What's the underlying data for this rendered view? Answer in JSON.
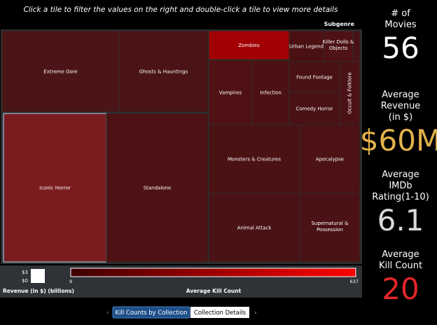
{
  "header": {
    "instruction": "Click a tile to filter the values on the right and double-click a tile to view more details",
    "treemap_label": "Subgenre"
  },
  "tiles": [
    {
      "label": "Extreme Gore",
      "color": "#4b1416"
    },
    {
      "label": "Ghosts & Hauntings",
      "color": "#4a1315"
    },
    {
      "label": "Iconic Horror",
      "color": "#7a1c1f"
    },
    {
      "label": "Standalone",
      "color": "#4d1214"
    },
    {
      "label": "Zombies",
      "color": "#a30004"
    },
    {
      "label": "Urban Legend",
      "color": "#4a1012"
    },
    {
      "label": "Killer Dolls & Objects",
      "color": "#4e1214"
    },
    {
      "label": "Vampires",
      "color": "#4f1113"
    },
    {
      "label": "Infection",
      "color": "#4c1113"
    },
    {
      "label": "Found Footage",
      "color": "#4a1113"
    },
    {
      "label": "Comedy Horror",
      "color": "#4a1214"
    },
    {
      "label": "Occult & Folklore",
      "color": "#4a1214"
    },
    {
      "label": "Monsters & Creatures",
      "color": "#4b1214"
    },
    {
      "label": "Apocalypse",
      "color": "#4d1214"
    },
    {
      "label": "Animal Attack",
      "color": "#4a1214"
    },
    {
      "label": "Supernatural & Possession",
      "color": "#4a1214"
    }
  ],
  "legend": {
    "revenue_max": "$3",
    "revenue_min": "$0",
    "revenue_title": "Revenue (in $) (billions)",
    "kill_min": "9",
    "kill_max": "637",
    "kill_title": "Average Kill Count",
    "gradient_from": "#3d0000",
    "gradient_to": "#ff0000"
  },
  "kpis": [
    {
      "label": "# of Movies",
      "value": "56",
      "color": "#ffffff"
    },
    {
      "label": "Average Revenue (in $)",
      "value": "$60M",
      "color": "#e3b24a"
    },
    {
      "label": "Average IMDb Rating(1-10)",
      "value": "6.1",
      "color": "#d9d9d9"
    },
    {
      "label": "Average Kill Count",
      "value": "20",
      "color": "#e3262b"
    }
  ],
  "tabs": [
    "Kill Counts by Collection",
    "Collection Details"
  ]
}
